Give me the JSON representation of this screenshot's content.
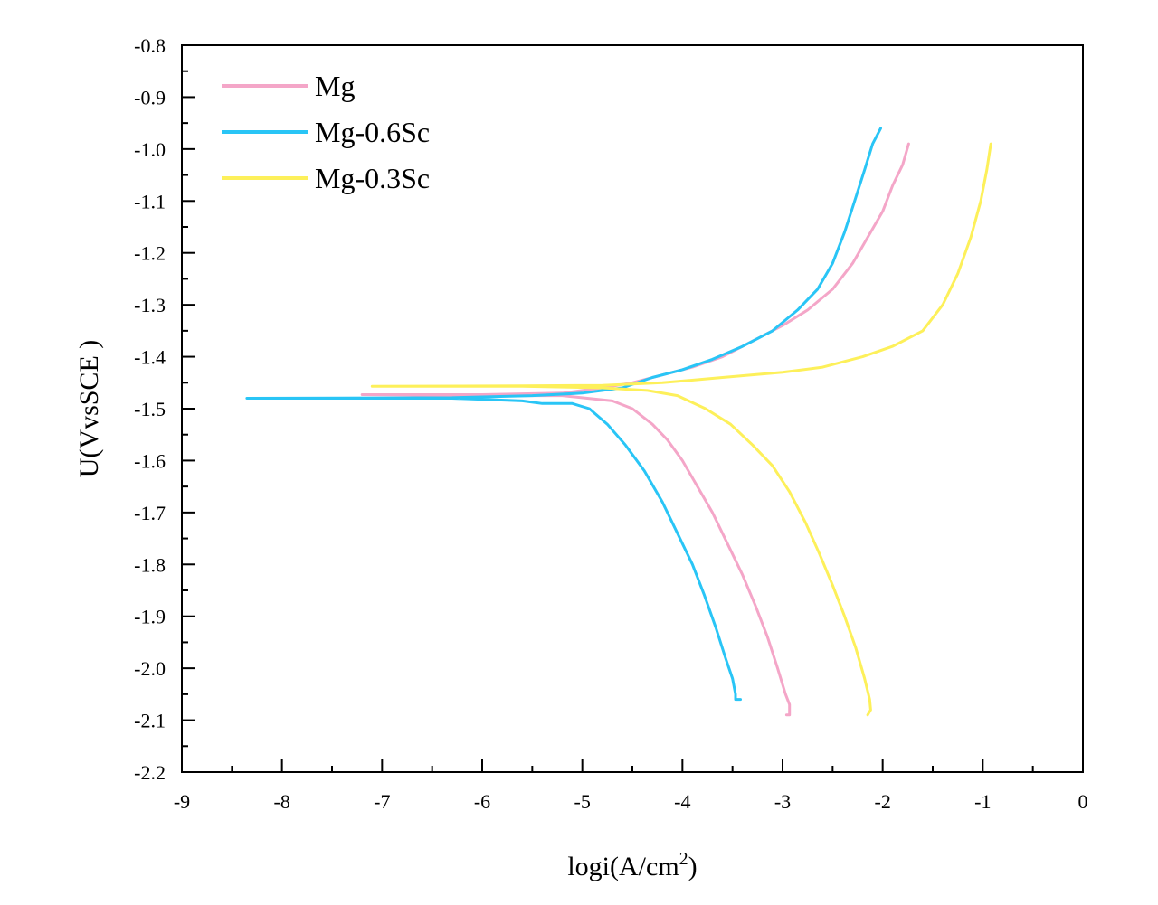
{
  "chart_data": {
    "type": "line",
    "title": "",
    "xlabel": "logi(A/cm",
    "xlabel_sup": "2",
    "xlabel_suffix": ")",
    "ylabel": "U(VvsSCE )",
    "xlim": [
      -9,
      0
    ],
    "ylim": [
      -2.2,
      -0.8
    ],
    "x_ticks": [
      -9,
      -8,
      -7,
      -6,
      -5,
      -4,
      -3,
      -2,
      -1,
      0
    ],
    "x_tick_labels": [
      "-9",
      "-8",
      "-7",
      "-6",
      "-5",
      "-4",
      "-3",
      "-2",
      "-1",
      "0"
    ],
    "y_ticks": [
      -0.8,
      -0.9,
      -1.0,
      -1.1,
      -1.2,
      -1.3,
      -1.4,
      -1.5,
      -1.6,
      -1.7,
      -1.8,
      -1.9,
      -2.0,
      -2.1,
      -2.2
    ],
    "y_tick_labels": [
      "-0.8",
      "-0.9",
      "-1.0",
      "-1.1",
      "-1.2",
      "-1.3",
      "-1.4",
      "-1.5",
      "-1.6",
      "-1.7",
      "-1.8",
      "-1.9",
      "-2.0",
      "-2.1",
      "-2.2"
    ],
    "grid": false,
    "legend_position": "top-left",
    "series": [
      {
        "name": "Mg",
        "color": "#f4a6c8",
        "points": [
          [
            -2.96,
            -2.09
          ],
          [
            -2.93,
            -2.09
          ],
          [
            -2.93,
            -2.07
          ],
          [
            -2.97,
            -2.05
          ],
          [
            -3.05,
            -2.0
          ],
          [
            -3.15,
            -1.94
          ],
          [
            -3.27,
            -1.88
          ],
          [
            -3.4,
            -1.82
          ],
          [
            -3.55,
            -1.76
          ],
          [
            -3.7,
            -1.7
          ],
          [
            -3.85,
            -1.65
          ],
          [
            -4.0,
            -1.6
          ],
          [
            -4.15,
            -1.56
          ],
          [
            -4.3,
            -1.53
          ],
          [
            -4.5,
            -1.5
          ],
          [
            -4.7,
            -1.485
          ],
          [
            -4.95,
            -1.48
          ],
          [
            -5.2,
            -1.475
          ],
          [
            -6.0,
            -1.475
          ],
          [
            -7.2,
            -1.473
          ],
          [
            -6.0,
            -1.473
          ],
          [
            -5.2,
            -1.47
          ],
          [
            -4.8,
            -1.46
          ],
          [
            -4.5,
            -1.45
          ],
          [
            -4.2,
            -1.435
          ],
          [
            -3.9,
            -1.42
          ],
          [
            -3.6,
            -1.4
          ],
          [
            -3.3,
            -1.37
          ],
          [
            -3.0,
            -1.34
          ],
          [
            -2.75,
            -1.31
          ],
          [
            -2.5,
            -1.27
          ],
          [
            -2.3,
            -1.22
          ],
          [
            -2.15,
            -1.17
          ],
          [
            -2.0,
            -1.12
          ],
          [
            -1.9,
            -1.07
          ],
          [
            -1.8,
            -1.03
          ],
          [
            -1.74,
            -0.99
          ]
        ]
      },
      {
        "name": "Mg-0.6Sc",
        "color": "#29c5f6",
        "points": [
          [
            -3.42,
            -2.06
          ],
          [
            -3.47,
            -2.06
          ],
          [
            -3.47,
            -2.05
          ],
          [
            -3.5,
            -2.02
          ],
          [
            -3.57,
            -1.98
          ],
          [
            -3.67,
            -1.92
          ],
          [
            -3.78,
            -1.86
          ],
          [
            -3.9,
            -1.8
          ],
          [
            -4.05,
            -1.74
          ],
          [
            -4.2,
            -1.68
          ],
          [
            -4.38,
            -1.62
          ],
          [
            -4.57,
            -1.57
          ],
          [
            -4.75,
            -1.53
          ],
          [
            -4.93,
            -1.5
          ],
          [
            -5.1,
            -1.49
          ],
          [
            -5.4,
            -1.49
          ],
          [
            -5.6,
            -1.485
          ],
          [
            -6.3,
            -1.48
          ],
          [
            -8.35,
            -1.48
          ],
          [
            -6.3,
            -1.479
          ],
          [
            -5.5,
            -1.475
          ],
          [
            -5.0,
            -1.47
          ],
          [
            -4.6,
            -1.46
          ],
          [
            -4.3,
            -1.44
          ],
          [
            -4.0,
            -1.425
          ],
          [
            -3.7,
            -1.405
          ],
          [
            -3.4,
            -1.38
          ],
          [
            -3.1,
            -1.35
          ],
          [
            -2.85,
            -1.31
          ],
          [
            -2.65,
            -1.27
          ],
          [
            -2.5,
            -1.22
          ],
          [
            -2.38,
            -1.16
          ],
          [
            -2.28,
            -1.1
          ],
          [
            -2.18,
            -1.04
          ],
          [
            -2.1,
            -0.99
          ],
          [
            -2.02,
            -0.96
          ]
        ]
      },
      {
        "name": "Mg-0.3Sc",
        "color": "#fdf05a",
        "points": [
          [
            -2.15,
            -2.09
          ],
          [
            -2.12,
            -2.08
          ],
          [
            -2.13,
            -2.06
          ],
          [
            -2.18,
            -2.02
          ],
          [
            -2.27,
            -1.96
          ],
          [
            -2.38,
            -1.9
          ],
          [
            -2.5,
            -1.84
          ],
          [
            -2.63,
            -1.78
          ],
          [
            -2.77,
            -1.72
          ],
          [
            -2.93,
            -1.66
          ],
          [
            -3.1,
            -1.61
          ],
          [
            -3.3,
            -1.57
          ],
          [
            -3.52,
            -1.53
          ],
          [
            -3.77,
            -1.5
          ],
          [
            -4.05,
            -1.475
          ],
          [
            -4.35,
            -1.465
          ],
          [
            -4.8,
            -1.46
          ],
          [
            -5.6,
            -1.457
          ],
          [
            -7.1,
            -1.457
          ],
          [
            -5.6,
            -1.456
          ],
          [
            -4.8,
            -1.455
          ],
          [
            -4.2,
            -1.45
          ],
          [
            -3.6,
            -1.44
          ],
          [
            -3.0,
            -1.43
          ],
          [
            -2.6,
            -1.42
          ],
          [
            -2.2,
            -1.4
          ],
          [
            -1.9,
            -1.38
          ],
          [
            -1.6,
            -1.35
          ],
          [
            -1.4,
            -1.3
          ],
          [
            -1.25,
            -1.24
          ],
          [
            -1.12,
            -1.17
          ],
          [
            -1.02,
            -1.1
          ],
          [
            -0.96,
            -1.04
          ],
          [
            -0.92,
            -0.99
          ]
        ]
      }
    ]
  }
}
